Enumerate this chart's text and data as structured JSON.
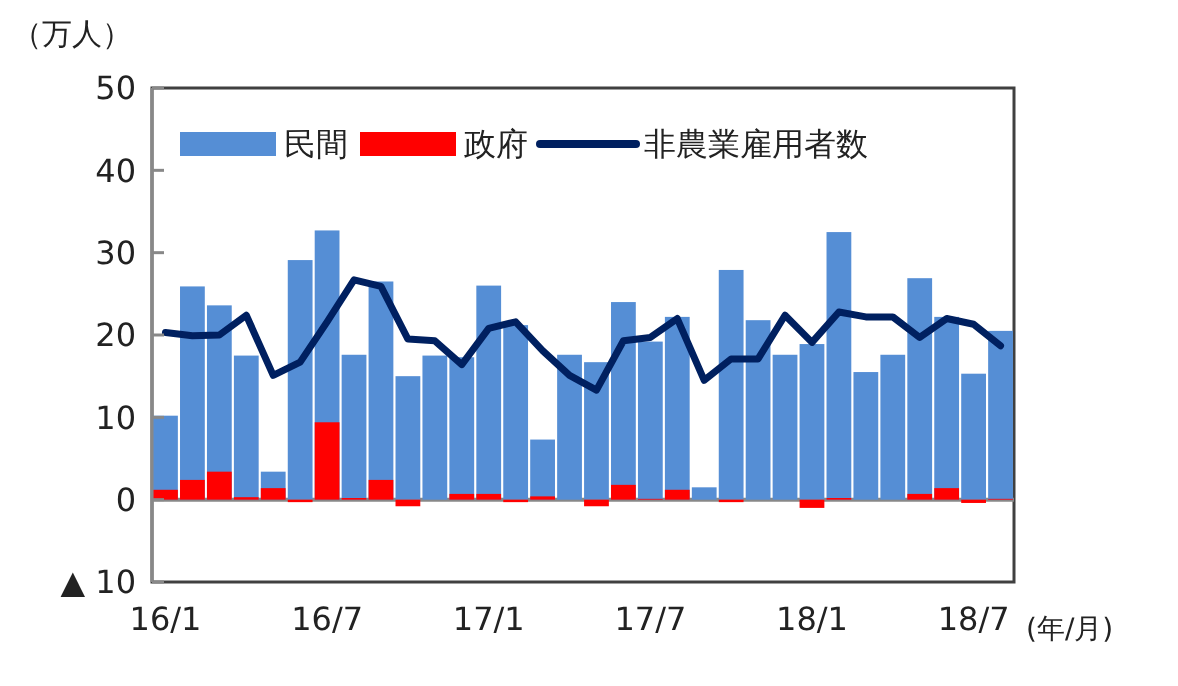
{
  "chart_data": {
    "type": "bar",
    "ylabel": "（万人）",
    "xlabel": "(年/月)",
    "categories": [
      "16/1",
      null,
      null,
      null,
      null,
      null,
      "16/7",
      null,
      null,
      null,
      null,
      null,
      "17/1",
      null,
      null,
      null,
      null,
      null,
      "17/7",
      null,
      null,
      null,
      null,
      null,
      "18/1",
      null,
      null,
      null,
      null,
      null,
      "18/7",
      null
    ],
    "series": [
      {
        "name": "民間",
        "color": "#558ed5",
        "values": [
          10.2,
          25.9,
          23.6,
          17.5,
          3.4,
          29.1,
          32.7,
          17.6,
          26.5,
          15.0,
          17.5,
          17.3,
          26.0,
          21.2,
          7.3,
          17.6,
          16.7,
          24.0,
          19.2,
          22.2,
          1.5,
          27.9,
          21.8,
          17.6,
          18.9,
          32.5,
          15.5,
          17.6,
          26.9,
          22.2,
          15.3,
          20.5
        ]
      },
      {
        "name": "政府",
        "color": "#ff0000",
        "values": [
          1.2,
          2.4,
          3.4,
          0.3,
          1.4,
          -0.3,
          9.4,
          0.2,
          2.4,
          -0.8,
          0,
          0.7,
          0.7,
          -0.3,
          0.4,
          0,
          -0.8,
          1.8,
          0.1,
          1.2,
          0,
          -0.3,
          0,
          0,
          -1.0,
          0.2,
          0,
          0,
          0.7,
          1.4,
          -0.4,
          0.1
        ]
      },
      {
        "name": "非農業雇用者数",
        "type": "line",
        "color": "#002060",
        "values": [
          20.3,
          19.9,
          20.0,
          22.4,
          15.1,
          16.7,
          21.6,
          26.7,
          25.9,
          19.5,
          19.3,
          16.4,
          20.8,
          21.6,
          18.1,
          15.1,
          13.3,
          19.3,
          19.7,
          22.0,
          14.5,
          17.1,
          17.1,
          22.4,
          19.1,
          22.8,
          22.2,
          22.2,
          19.7,
          22.0,
          21.3,
          18.7
        ]
      }
    ],
    "ylim": [
      -10,
      50
    ],
    "yticks": [
      {
        "value": -10,
        "label": "▲ 10"
      },
      0,
      10,
      20,
      30,
      40,
      50
    ],
    "legend": "top",
    "marker": "none",
    "line_style": "solid"
  }
}
